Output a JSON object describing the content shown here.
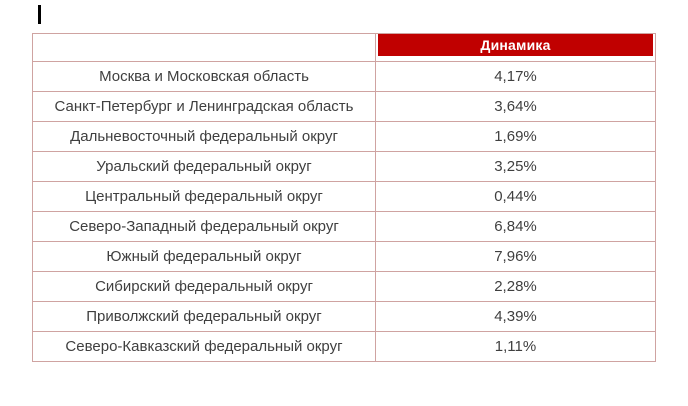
{
  "editor": {
    "caret": "text-insertion-caret"
  },
  "colors": {
    "header_bg": "#c00000",
    "header_text": "#ffffff",
    "border": "#cfa3a1",
    "text": "#3f3f3f"
  },
  "table": {
    "header": {
      "region": "",
      "dynamics": "Динамика"
    },
    "rows": [
      {
        "region": "Москва и Московская область",
        "value": "4,17%"
      },
      {
        "region": "Санкт-Петербург и Ленинградская область",
        "value": "3,64%"
      },
      {
        "region": "Дальневосточный федеральный округ",
        "value": "1,69%"
      },
      {
        "region": "Уральский федеральный округ",
        "value": "3,25%"
      },
      {
        "region": "Центральный федеральный округ",
        "value": "0,44%"
      },
      {
        "region": "Северо-Западный федеральный округ",
        "value": "6,84%"
      },
      {
        "region": "Южный федеральный округ",
        "value": "7,96%"
      },
      {
        "region": "Сибирский федеральный округ",
        "value": "2,28%"
      },
      {
        "region": "Приволжский федеральный округ",
        "value": "4,39%"
      },
      {
        "region": "Северо-Кавказский федеральный округ",
        "value": "1,11%"
      }
    ]
  }
}
